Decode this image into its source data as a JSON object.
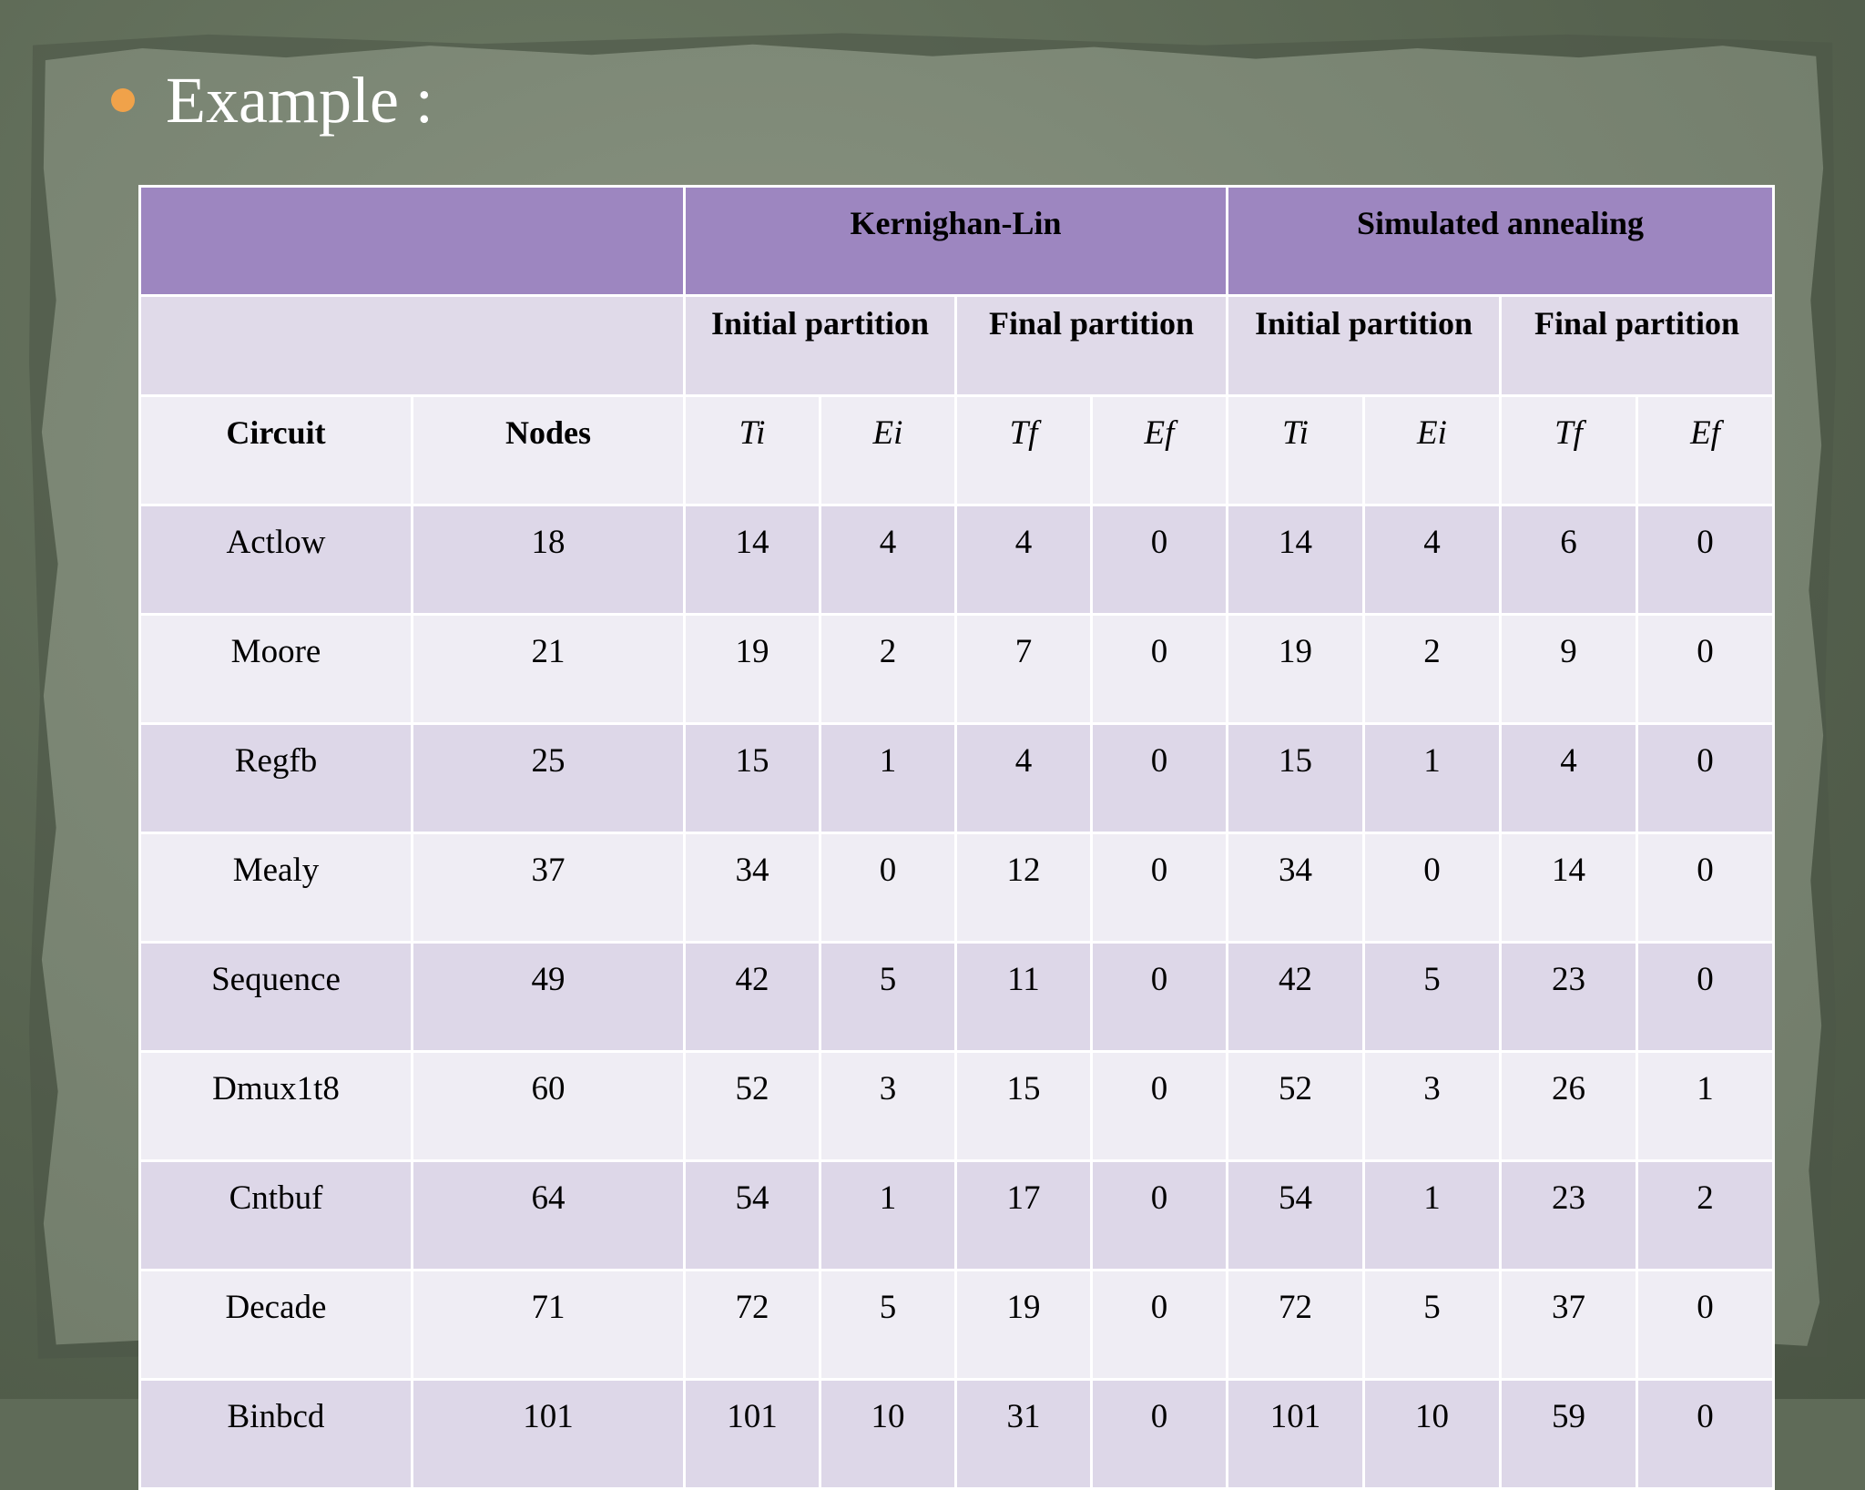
{
  "slide": {
    "title": "Example :",
    "colors": {
      "bullet": "#f0a24a",
      "header": "#9d86c0",
      "row_band": "#ddd7e8",
      "row_light": "#efedf4"
    }
  },
  "table": {
    "groups": [
      "Kernighan-Lin",
      "Simulated annealing"
    ],
    "subgroups": [
      "Initial partition",
      "Final partition",
      "Initial partition",
      "Final partition"
    ],
    "col_circuit": "Circuit",
    "col_nodes": "Nodes",
    "metrics": [
      "Ti",
      "Ei",
      "Tf",
      "Ef",
      "Ti",
      "Ei",
      "Tf",
      "Ef"
    ],
    "rows": [
      [
        "Actlow",
        "18",
        "14",
        "4",
        "4",
        "0",
        "14",
        "4",
        "6",
        "0"
      ],
      [
        "Moore",
        "21",
        "19",
        "2",
        "7",
        "0",
        "19",
        "2",
        "9",
        "0"
      ],
      [
        "Regfb",
        "25",
        "15",
        "1",
        "4",
        "0",
        "15",
        "1",
        "4",
        "0"
      ],
      [
        "Mealy",
        "37",
        "34",
        "0",
        "12",
        "0",
        "34",
        "0",
        "14",
        "0"
      ],
      [
        "Sequence",
        "49",
        "42",
        "5",
        "11",
        "0",
        "42",
        "5",
        "23",
        "0"
      ],
      [
        "Dmux1t8",
        "60",
        "52",
        "3",
        "15",
        "0",
        "52",
        "3",
        "26",
        "1"
      ],
      [
        "Cntbuf",
        "64",
        "54",
        "1",
        "17",
        "0",
        "54",
        "1",
        "23",
        "2"
      ],
      [
        "Decade",
        "71",
        "72",
        "5",
        "19",
        "0",
        "72",
        "5",
        "37",
        "0"
      ],
      [
        "Binbcd",
        "101",
        "101",
        "10",
        "31",
        "0",
        "101",
        "10",
        "59",
        "0"
      ]
    ]
  }
}
